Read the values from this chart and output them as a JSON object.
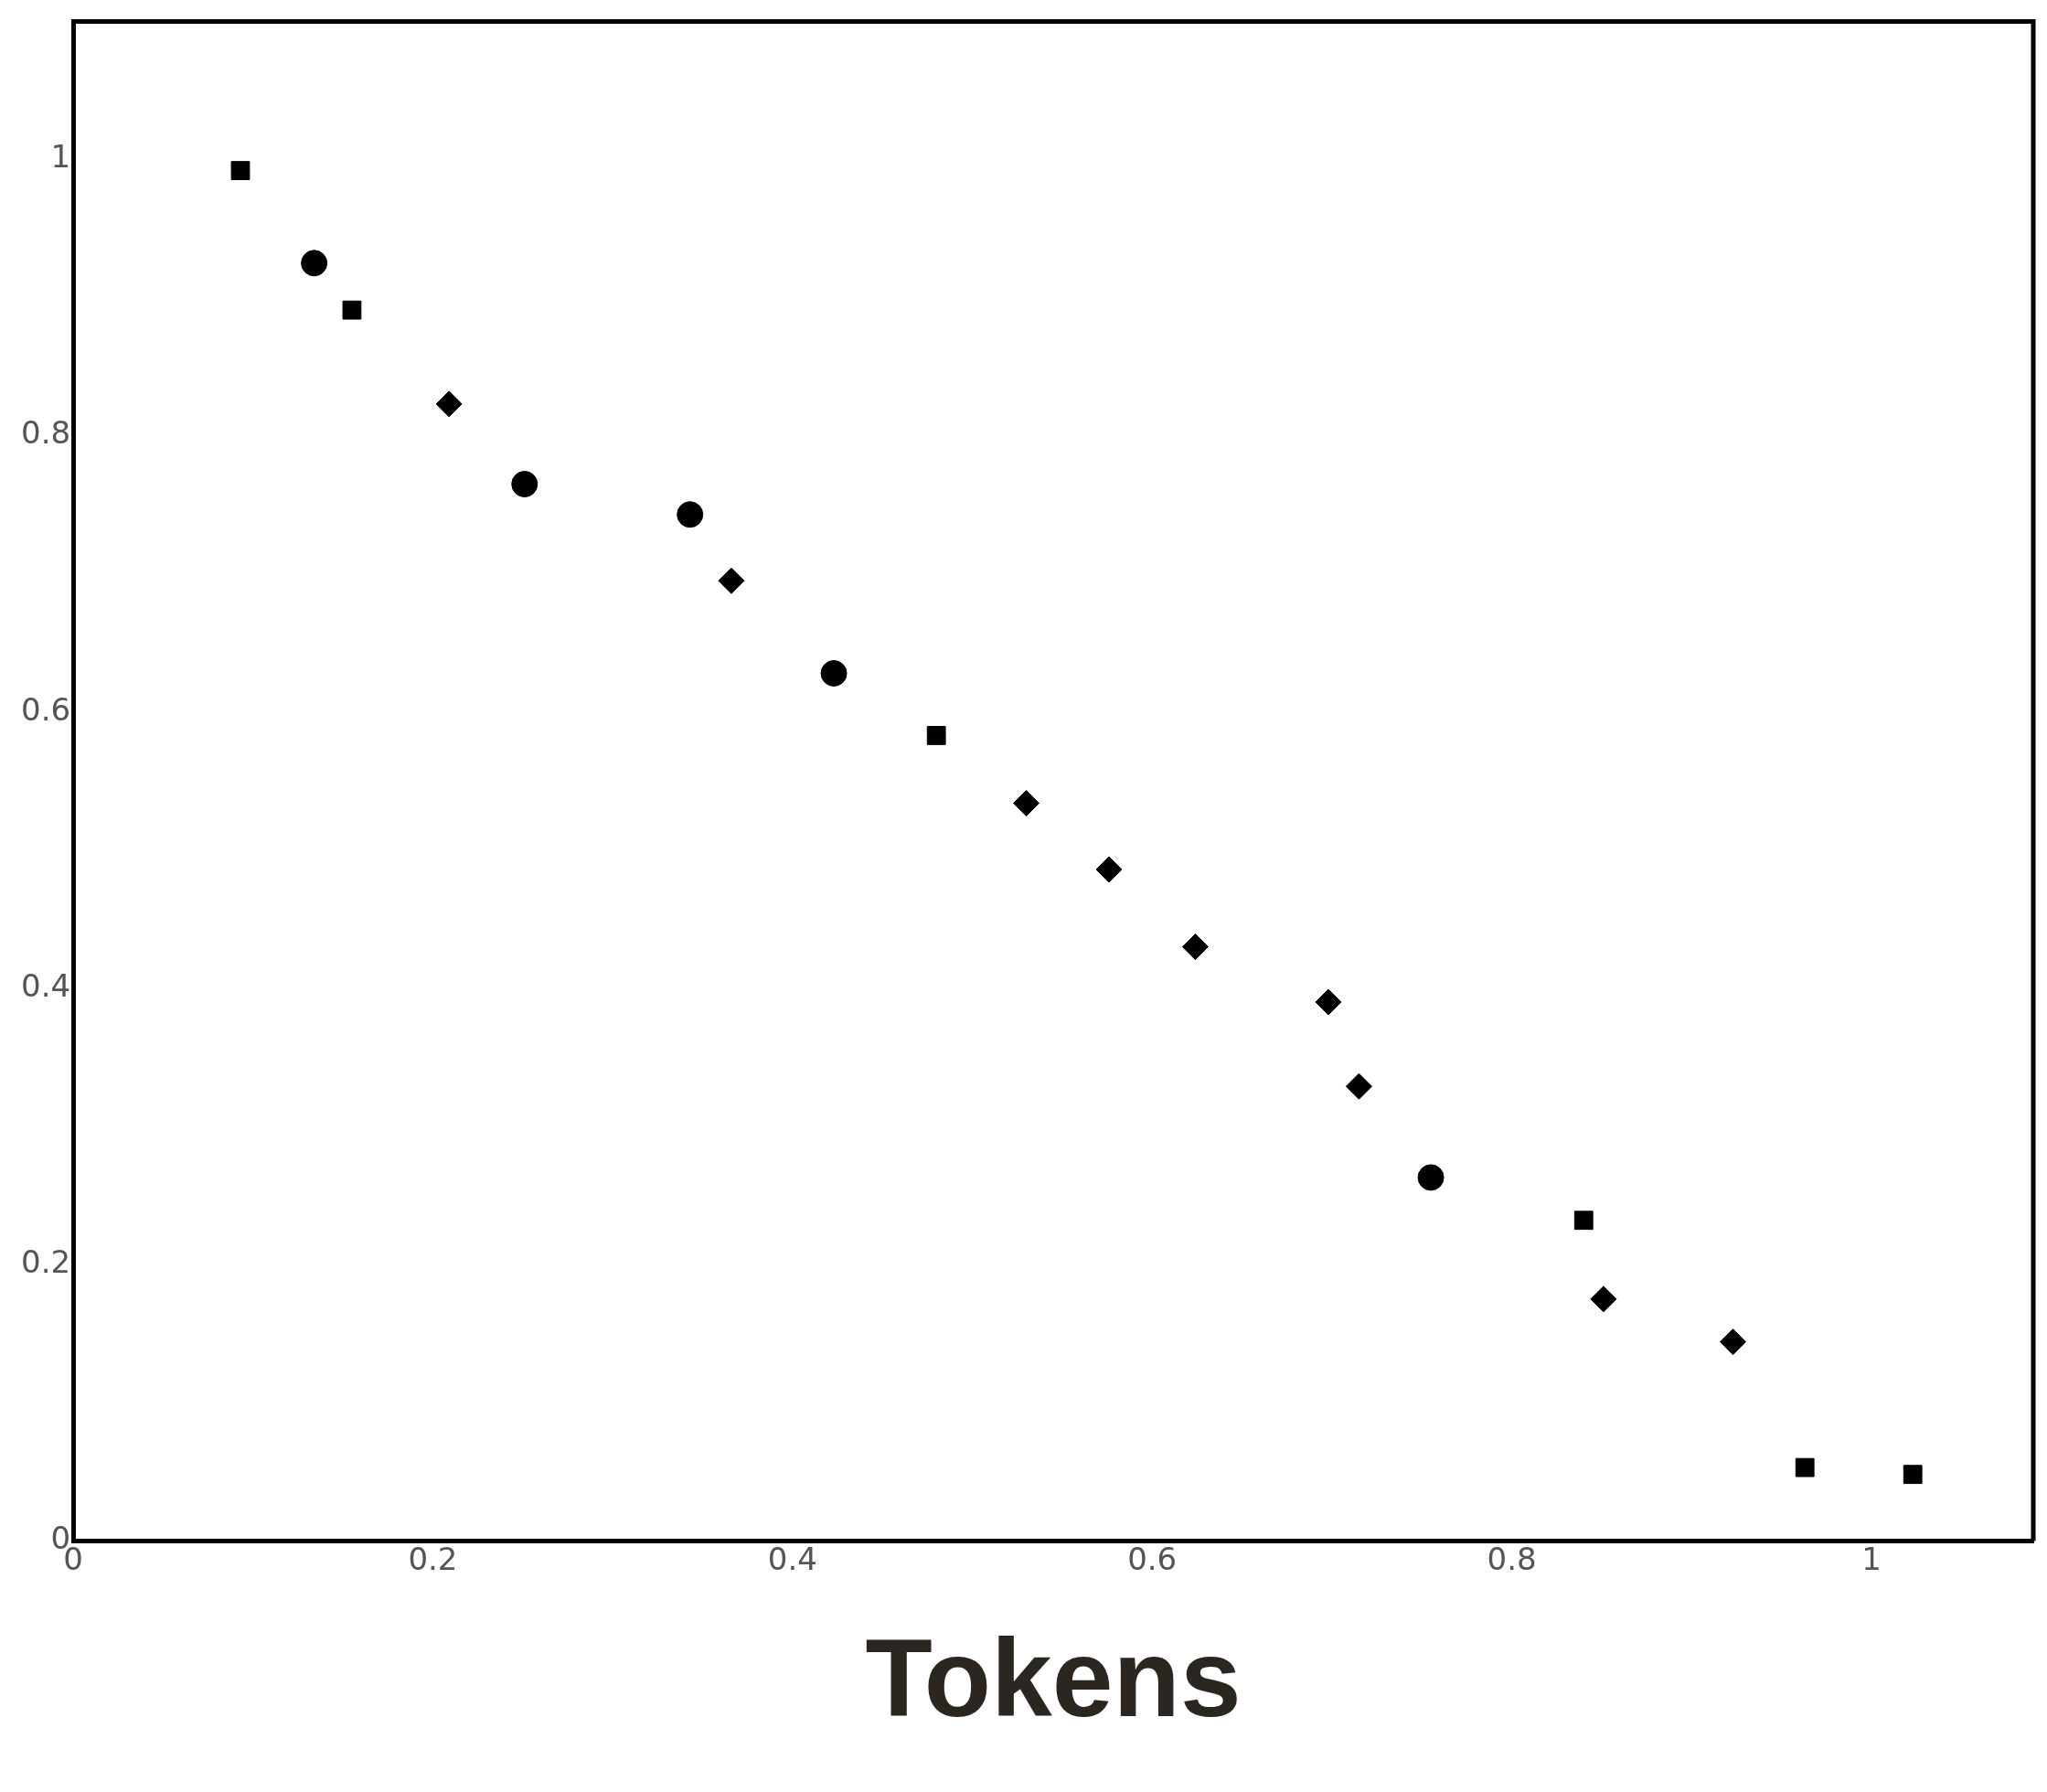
{
  "chart_data": {
    "type": "scatter",
    "xlabel": "Tokens",
    "xlim": [
      0,
      1.09
    ],
    "xticks": [
      0,
      0.2,
      0.4,
      0.6,
      0.8,
      1
    ],
    "ylim": [
      0,
      1.1
    ],
    "yticks": [
      0,
      0.2,
      0.4,
      0.6,
      0.8,
      1
    ],
    "grid": false,
    "legend": false,
    "series": [
      {
        "color": "#000000",
        "marker": "square",
        "x": [
          0.093,
          0.155,
          0.48,
          0.84,
          0.963,
          1.023
        ],
        "values": [
          0.992,
          0.891,
          0.583,
          0.232,
          0.053,
          0.048
        ]
      },
      {
        "color": "#000000",
        "marker": "circle",
        "x": [
          0.134,
          0.251,
          0.343,
          0.423,
          0.755
        ],
        "values": [
          0.925,
          0.765,
          0.743,
          0.628,
          0.263
        ]
      },
      {
        "color": "#000000",
        "marker": "diamond",
        "x": [
          0.209,
          0.366,
          0.53,
          0.576,
          0.624,
          0.698,
          0.715,
          0.851,
          0.923
        ],
        "values": [
          0.823,
          0.695,
          0.534,
          0.486,
          0.43,
          0.39,
          0.329,
          0.175,
          0.144
        ]
      }
    ]
  }
}
